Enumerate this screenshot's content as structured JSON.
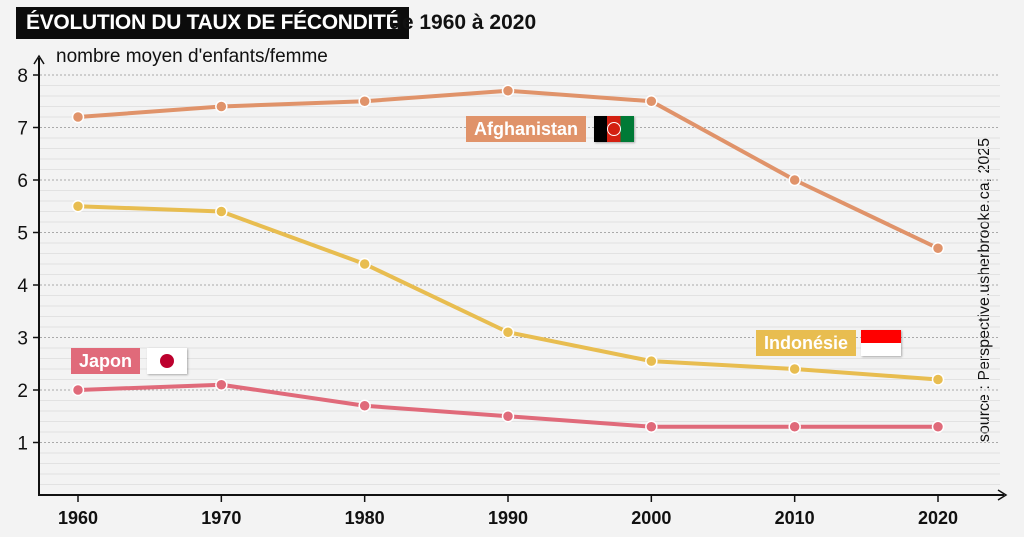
{
  "header": {
    "title": "ÉVOLUTION DU TAUX DE FÉCONDITÉ",
    "subtitle": "de 1960 à 2020"
  },
  "source": "source : Perspective.usherbrooke.ca, 2025",
  "chart_data": {
    "type": "line",
    "title": "ÉVOLUTION DU TAUX DE FÉCONDITÉ de 1960 à 2020",
    "ylabel": "nombre moyen d'enfants/femme",
    "xlabel": "",
    "x": [
      1960,
      1970,
      1980,
      1990,
      2000,
      2010,
      2020
    ],
    "ylim": [
      0,
      8
    ],
    "yticks": [
      1,
      2,
      3,
      4,
      5,
      6,
      7,
      8
    ],
    "grid": true,
    "series": [
      {
        "name": "Afghanistan",
        "color": "#e0936a",
        "values": [
          7.2,
          7.4,
          7.5,
          7.7,
          7.5,
          6.0,
          4.7
        ]
      },
      {
        "name": "Indonésie",
        "color": "#e8bd50",
        "values": [
          5.5,
          5.4,
          4.4,
          3.1,
          2.55,
          2.4,
          2.2
        ]
      },
      {
        "name": "Japon",
        "color": "#e06a7a",
        "values": [
          2.0,
          2.1,
          1.7,
          1.5,
          1.3,
          1.3,
          1.3
        ]
      }
    ]
  }
}
